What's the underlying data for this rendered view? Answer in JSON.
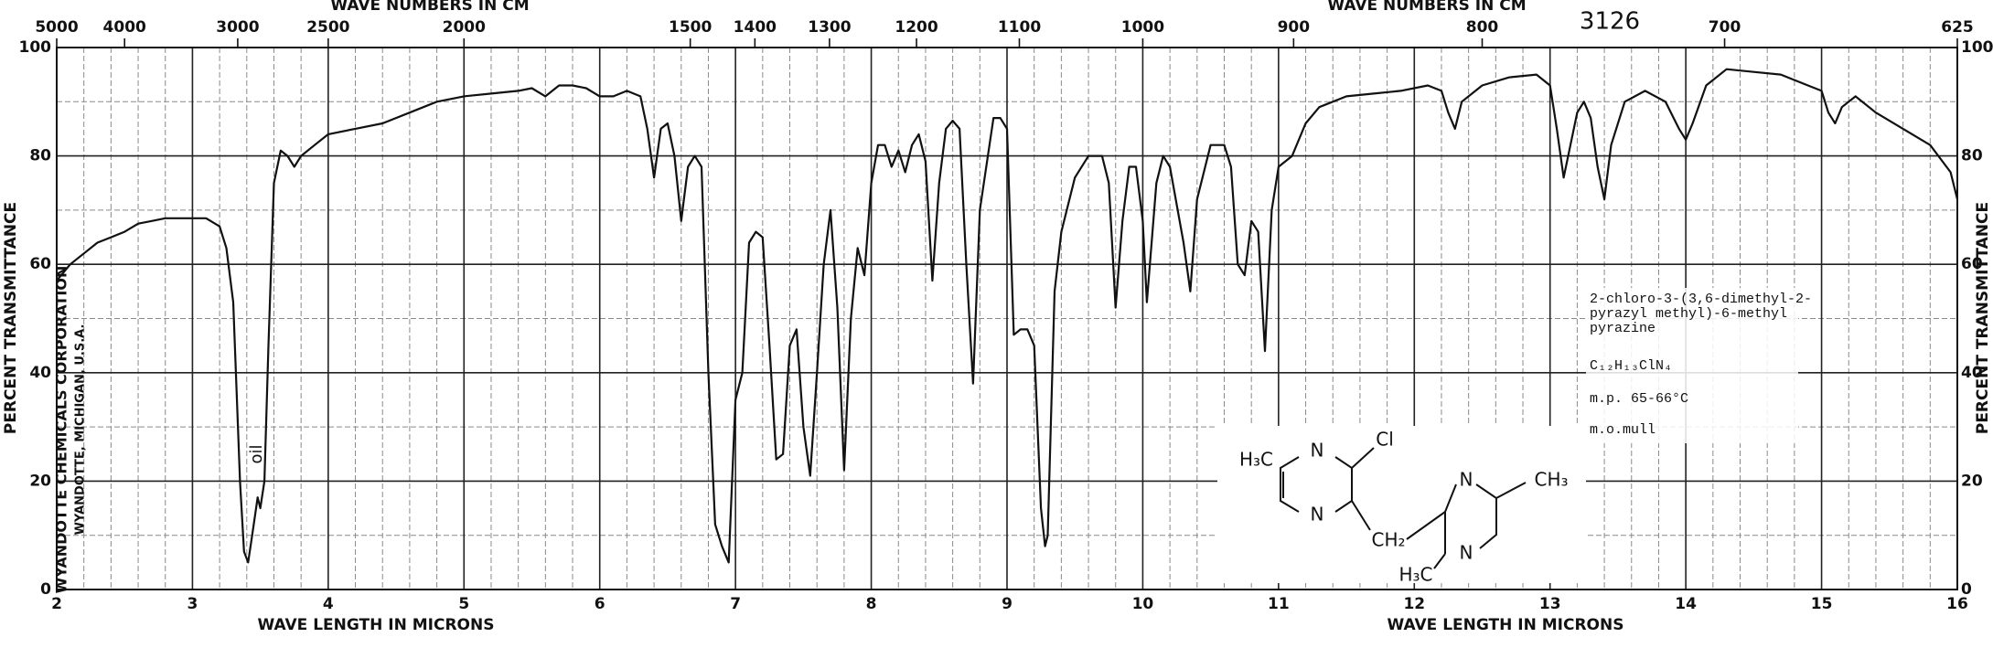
{
  "chart_data": {
    "type": "line",
    "x_label": "WAVE LENGTH IN MICRONS",
    "y_label": "PERCENT TRANSMITTANCE",
    "x2_label": "WAVE NUMBERS IN CM",
    "chart_number": "3126",
    "xlim": [
      2,
      16
    ],
    "xticks": [
      2,
      3,
      4,
      5,
      6,
      7,
      8,
      9,
      10,
      11,
      12,
      13,
      14,
      15,
      16
    ],
    "x2ticks": [
      5000,
      4000,
      3000,
      2500,
      2000,
      1500,
      1400,
      1300,
      1200,
      1100,
      1000,
      900,
      800,
      700,
      625
    ],
    "ylim": [
      0,
      100
    ],
    "yticks": [
      0,
      20,
      40,
      60,
      80,
      100
    ],
    "grid": true,
    "minor_grid": {
      "x": 0.2,
      "y": 10
    },
    "color": "#111111",
    "x": [
      2.0,
      2.1,
      2.2,
      2.3,
      2.4,
      2.5,
      2.6,
      2.7,
      2.8,
      2.9,
      3.0,
      3.1,
      3.2,
      3.25,
      3.3,
      3.35,
      3.38,
      3.41,
      3.44,
      3.48,
      3.5,
      3.53,
      3.56,
      3.6,
      3.65,
      3.7,
      3.75,
      3.8,
      3.9,
      4.0,
      4.2,
      4.4,
      4.6,
      4.8,
      5.0,
      5.2,
      5.4,
      5.5,
      5.6,
      5.7,
      5.8,
      5.9,
      6.0,
      6.1,
      6.2,
      6.3,
      6.35,
      6.4,
      6.45,
      6.5,
      6.55,
      6.6,
      6.65,
      6.7,
      6.75,
      6.8,
      6.85,
      6.9,
      6.95,
      7.0,
      7.05,
      7.1,
      7.15,
      7.2,
      7.25,
      7.3,
      7.35,
      7.4,
      7.45,
      7.5,
      7.55,
      7.6,
      7.65,
      7.7,
      7.75,
      7.8,
      7.85,
      7.9,
      7.95,
      8.0,
      8.05,
      8.1,
      8.15,
      8.2,
      8.25,
      8.3,
      8.35,
      8.4,
      8.45,
      8.5,
      8.55,
      8.6,
      8.65,
      8.7,
      8.75,
      8.8,
      8.9,
      8.95,
      9.0,
      9.05,
      9.1,
      9.15,
      9.2,
      9.25,
      9.28,
      9.3,
      9.35,
      9.4,
      9.5,
      9.6,
      9.7,
      9.75,
      9.8,
      9.85,
      9.9,
      9.95,
      10.0,
      10.03,
      10.1,
      10.15,
      10.2,
      10.3,
      10.35,
      10.4,
      10.5,
      10.6,
      10.65,
      10.7,
      10.75,
      10.8,
      10.85,
      10.9,
      10.95,
      11.0,
      11.1,
      11.2,
      11.3,
      11.5,
      11.7,
      11.9,
      12.1,
      12.2,
      12.25,
      12.3,
      12.35,
      12.5,
      12.7,
      12.9,
      13.0,
      13.05,
      13.1,
      13.15,
      13.2,
      13.25,
      13.3,
      13.35,
      13.4,
      13.45,
      13.55,
      13.7,
      13.85,
      13.95,
      14.0,
      14.05,
      14.15,
      14.3,
      14.5,
      14.7,
      14.9,
      15.0,
      15.05,
      15.1,
      15.15,
      15.25,
      15.4,
      15.6,
      15.8,
      15.95,
      16.0
    ],
    "values": [
      57,
      60,
      62,
      64,
      65,
      66,
      67.5,
      68,
      68.5,
      68.5,
      68.5,
      68.5,
      67,
      63,
      53,
      20,
      7,
      5,
      10,
      17,
      15,
      20,
      45,
      75,
      81,
      80,
      78,
      80,
      82,
      84,
      85,
      86,
      88,
      90,
      91,
      91.5,
      92,
      92.5,
      91,
      93,
      93,
      92.5,
      91,
      91,
      92,
      91,
      85,
      76,
      85,
      86,
      80,
      68,
      78,
      80,
      78,
      40,
      12,
      8,
      5,
      35,
      40,
      64,
      66,
      65,
      45,
      24,
      25,
      45,
      48,
      30,
      21,
      40,
      60,
      70,
      52,
      22,
      50,
      63,
      58,
      75,
      82,
      82,
      78,
      81,
      77,
      82,
      84,
      79,
      57,
      75,
      85,
      86.5,
      85,
      60,
      38,
      70,
      87,
      87,
      85,
      47,
      48,
      48,
      45,
      15,
      8,
      10,
      55,
      66,
      76,
      80,
      80,
      75,
      52,
      68,
      78,
      78,
      68,
      53,
      75,
      80,
      78,
      64,
      55,
      72,
      82,
      82,
      78,
      60,
      58,
      68,
      66,
      44,
      70,
      78,
      80,
      86,
      89,
      91,
      91.5,
      92,
      93,
      92,
      88,
      85,
      90,
      93,
      94.5,
      95,
      93,
      85,
      76,
      82,
      88,
      90,
      87,
      78,
      72,
      82,
      90,
      92,
      90,
      85,
      83,
      86,
      93,
      96,
      95.5,
      95,
      93,
      92,
      88,
      86,
      89,
      91,
      88,
      85,
      82,
      77,
      72
    ],
    "oil_label": "oil",
    "manufacturer": [
      "WYANDOTTE CHEMICALS CORPORATION",
      "WYANDOTTE, MICHIGAN, U.S.A."
    ],
    "compound": {
      "name_lines": [
        "2-chloro-3-(3,6-dimethyl-2-",
        "pyrazyl methyl)-6-methyl",
        "pyrazine"
      ],
      "formula": "C₁₂H₁₃ClN₄",
      "melting_point": "m.p. 65-66°C",
      "medium": "m.o.mull"
    },
    "structure_labels": [
      "H₃C",
      "N",
      "Cl",
      "N",
      "CH₂",
      "N",
      "CH₃",
      "H₃C",
      "N"
    ]
  }
}
